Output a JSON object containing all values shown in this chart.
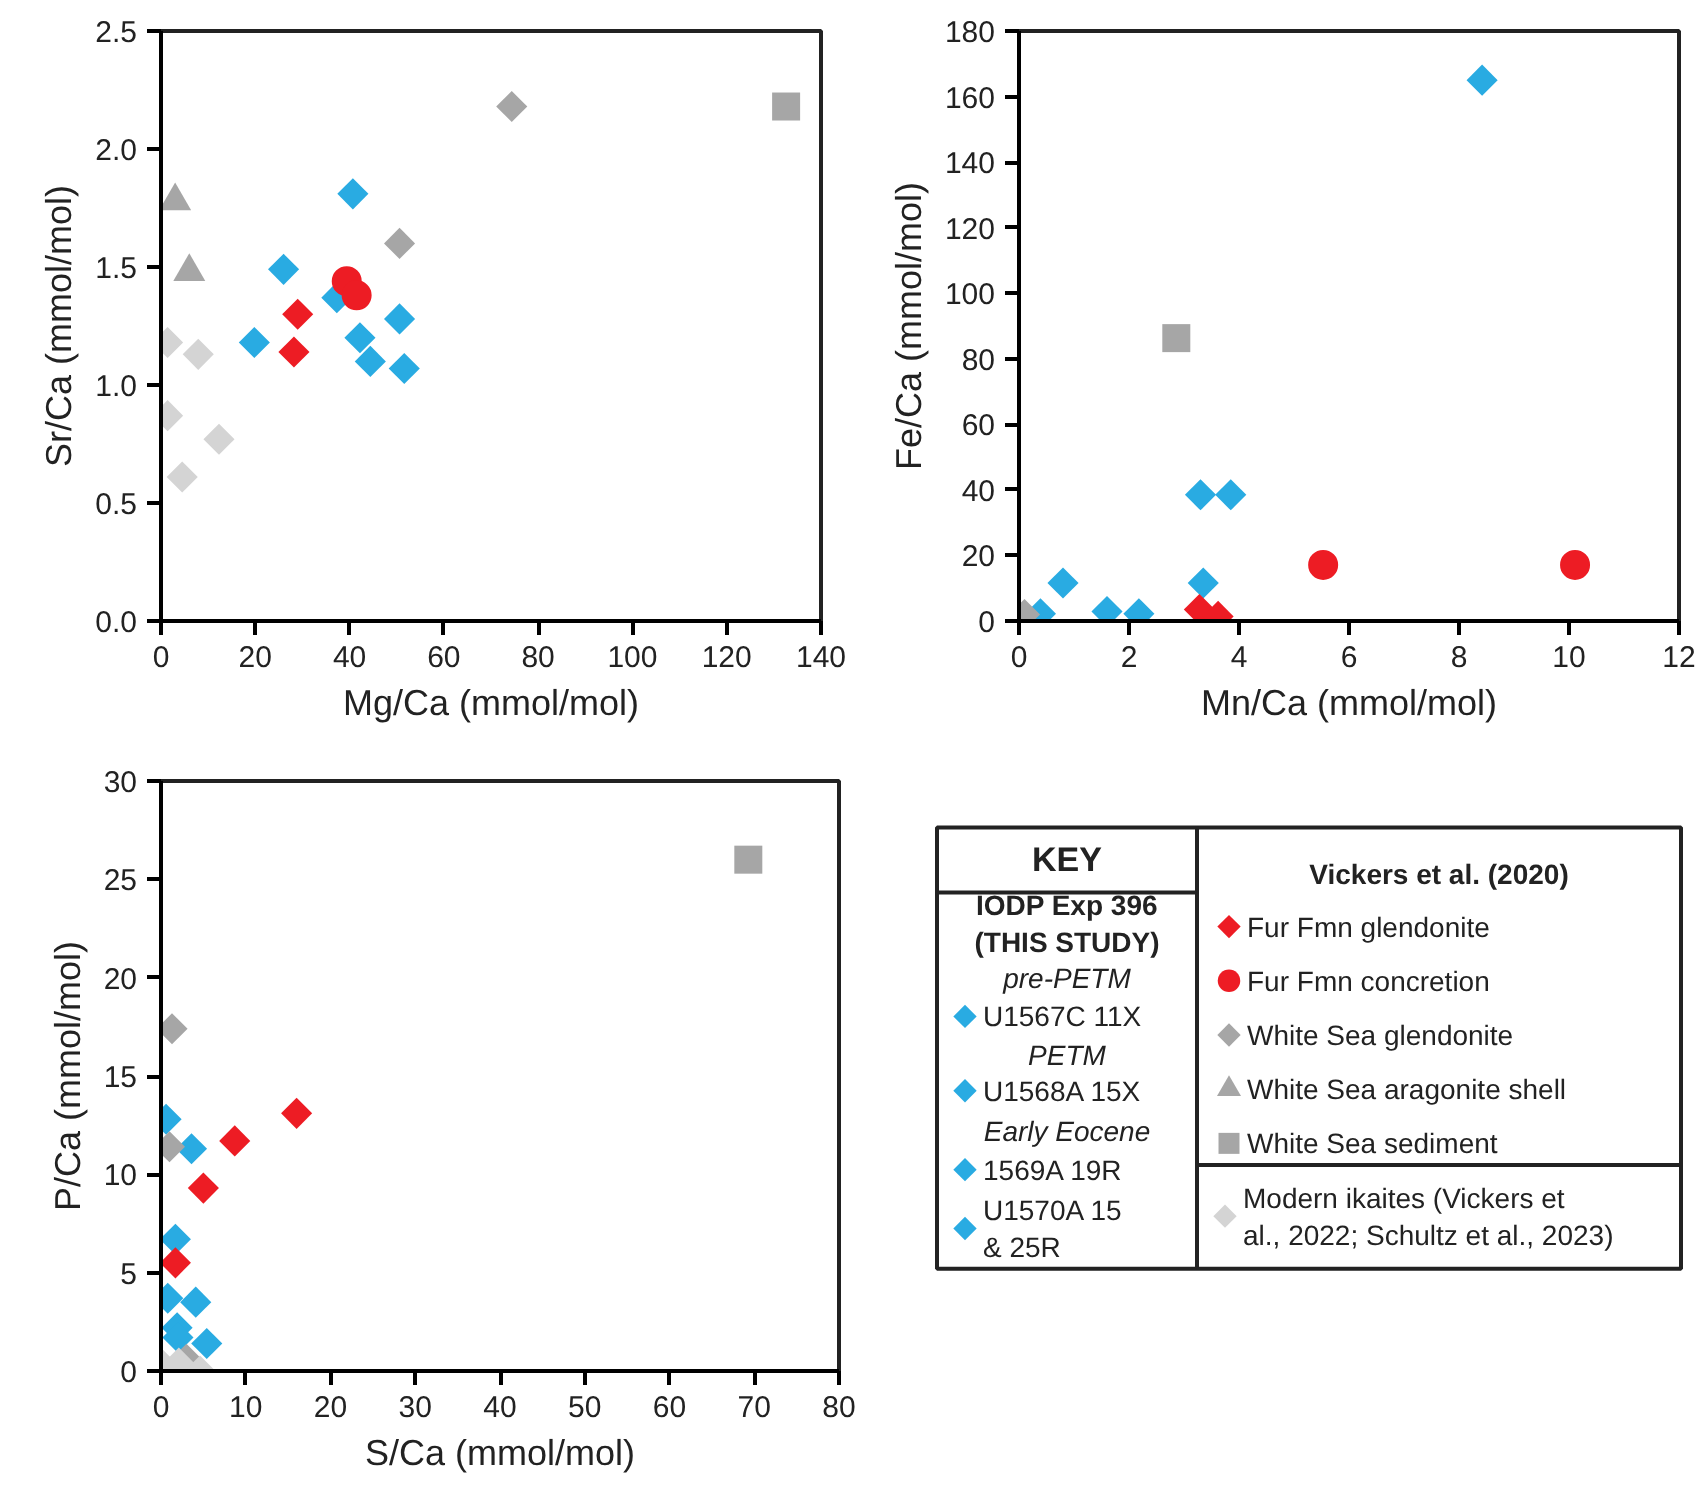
{
  "chart_data": [
    {
      "type": "scatter",
      "xlabel": "Mg/Ca (mmol/mol)",
      "ylabel": "Sr/Ca (mmol/mol)",
      "xlim": [
        0,
        140
      ],
      "ylim": [
        0,
        2.5
      ],
      "xticks": [
        0,
        20,
        40,
        60,
        80,
        100,
        120,
        140
      ],
      "yticks": [
        {
          "value": 0,
          "label": "0.0"
        },
        {
          "value": 0.5,
          "label": "0.5"
        },
        {
          "value": 1,
          "label": "1.0"
        },
        {
          "value": 1.5,
          "label": "1.5"
        },
        {
          "value": 2,
          "label": "2.0"
        },
        {
          "value": 2.5,
          "label": "2.5"
        }
      ],
      "grid": false,
      "legend": "bottom right",
      "series": [
        {
          "name": "U1567C 11X",
          "marker": "diamond",
          "color": "#29abe2",
          "x": [
            26
          ],
          "values": [
            1.49
          ]
        },
        {
          "name": "U1568A 15X",
          "marker": "diamond",
          "color": "#29abe2",
          "x": [
            37.3
          ],
          "values": [
            1.37
          ]
        },
        {
          "name": "1569A 19R",
          "marker": "diamond",
          "color": "#29abe2",
          "x": [
            42.2,
            51.6
          ],
          "values": [
            1.2,
            1.07
          ]
        },
        {
          "name": "U1570A 15\n& 25R",
          "marker": "diamond",
          "color": "#29abe2",
          "x": [
            40.7,
            19.8,
            50.6,
            44.4
          ],
          "values": [
            1.81,
            1.18,
            1.28,
            1.1
          ]
        },
        {
          "name": "Fur Fmn glendonite",
          "marker": "diamond",
          "color": "#ed1c24",
          "x": [
            29,
            28.2
          ],
          "values": [
            1.3,
            1.14
          ]
        },
        {
          "name": "Fur Fmn concretion",
          "marker": "circle",
          "color": "#ed1c24",
          "x": [
            39.4,
            41.5
          ],
          "values": [
            1.44,
            1.38
          ]
        },
        {
          "name": "White Sea glendonite",
          "marker": "diamond",
          "color": "#a6a6a6",
          "x": [
            74.4,
            50.6
          ],
          "values": [
            2.18,
            1.6
          ]
        },
        {
          "name": "White Sea aragonite shell",
          "marker": "triangle",
          "color": "#a6a6a6",
          "x": [
            3,
            6
          ],
          "values": [
            1.78,
            1.48
          ]
        },
        {
          "name": "White Sea sediment",
          "marker": "square",
          "color": "#a6a6a6",
          "x": [
            132.6
          ],
          "values": [
            2.18
          ]
        },
        {
          "name": "Modern ikaites (Vickers et\nal., 2022; Schultz et al., 2023)",
          "marker": "diamond",
          "color": "#d4d4d4",
          "x": [
            1.4,
            7.9,
            1.4,
            12.3,
            4.5
          ],
          "values": [
            1.18,
            1.13,
            0.87,
            0.77,
            0.61
          ]
        }
      ]
    },
    {
      "type": "scatter",
      "xlabel": "Mn/Ca (mmol/mol)",
      "ylabel": "Fe/Ca (mmol/mol)",
      "xlim": [
        0,
        12
      ],
      "ylim": [
        0,
        180
      ],
      "xticks": [
        0,
        2,
        4,
        6,
        8,
        10,
        12
      ],
      "yticks": [
        0,
        20,
        40,
        60,
        80,
        100,
        120,
        140,
        160,
        180
      ],
      "grid": false,
      "series": [
        {
          "marker": "diamond",
          "color": "#29abe2",
          "x": [
            2.18
          ],
          "values": [
            2.2
          ]
        },
        {
          "marker": "diamond",
          "color": "#29abe2",
          "x": [
            8.42
          ],
          "values": [
            165
          ]
        },
        {
          "marker": "diamond",
          "color": "#29abe2",
          "x": [
            1.6,
            0.39
          ],
          "values": [
            2.9,
            2.2
          ]
        },
        {
          "marker": "diamond",
          "color": "#29abe2",
          "x": [
            0.8,
            3.3,
            3.85,
            3.35
          ],
          "values": [
            11.6,
            38.5,
            38.5,
            11.6
          ]
        },
        {
          "marker": "diamond",
          "color": "#ed1c24",
          "x": [
            3.28,
            3.62
          ],
          "values": [
            3.5,
            1.4
          ]
        },
        {
          "marker": "circle",
          "color": "#ed1c24",
          "x": [
            5.53,
            10.11
          ],
          "values": [
            17.1,
            17.1
          ]
        },
        {
          "marker": "diamond",
          "color": "#a6a6a6",
          "x": [
            0.1
          ],
          "values": [
            2
          ]
        },
        {
          "marker": "square",
          "color": "#a6a6a6",
          "x": [
            2.86
          ],
          "values": [
            86.3
          ]
        }
      ]
    },
    {
      "type": "scatter",
      "xlabel": "S/Ca (mmol/mol)",
      "ylabel": "P/Ca (mmol/mol)",
      "xlim": [
        0,
        80
      ],
      "ylim": [
        0,
        30
      ],
      "xticks": [
        0,
        10,
        20,
        30,
        40,
        50,
        60,
        70,
        80
      ],
      "yticks": [
        0,
        5,
        10,
        15,
        20,
        25,
        30
      ],
      "grid": false,
      "series": [
        {
          "marker": "diamond",
          "color": "#29abe2",
          "x": [
            3.6
          ],
          "values": [
            11.3
          ]
        },
        {
          "marker": "diamond",
          "color": "#29abe2",
          "x": [
            4.1
          ],
          "values": [
            3.5
          ]
        },
        {
          "marker": "diamond",
          "color": "#29abe2",
          "x": [
            1.9,
            5.4
          ],
          "values": [
            2.2,
            1.4
          ]
        },
        {
          "marker": "diamond",
          "color": "#29abe2",
          "x": [
            0.6,
            1.7,
            0.8,
            2.0
          ],
          "values": [
            12.8,
            6.7,
            3.7,
            1.7
          ]
        },
        {
          "marker": "diamond",
          "color": "#ed1c24",
          "x": [
            16,
            8.7,
            5,
            1.7
          ],
          "values": [
            13.1,
            11.7,
            9.3,
            5.5
          ]
        },
        {
          "marker": "diamond",
          "color": "#a6a6a6",
          "x": [
            1.3,
            1.0,
            3.0
          ],
          "values": [
            17.4,
            11.4,
            0.6
          ]
        },
        {
          "marker": "square",
          "color": "#a6a6a6",
          "x": [
            69.3
          ],
          "values": [
            26
          ]
        },
        {
          "marker": "diamond",
          "color": "#d4d4d4",
          "x": [
            0.2,
            2.1,
            4.6
          ],
          "values": [
            0.3,
            0.4,
            0
          ]
        }
      ]
    },
    {
      "type": "other",
      "title": "KEY",
      "annotations": [
        "IODP Exp 396\n(THIS STUDY)",
        "pre-PETM",
        "PETM",
        "Early Eocene",
        "Vickers et al. (2020)"
      ]
    }
  ]
}
